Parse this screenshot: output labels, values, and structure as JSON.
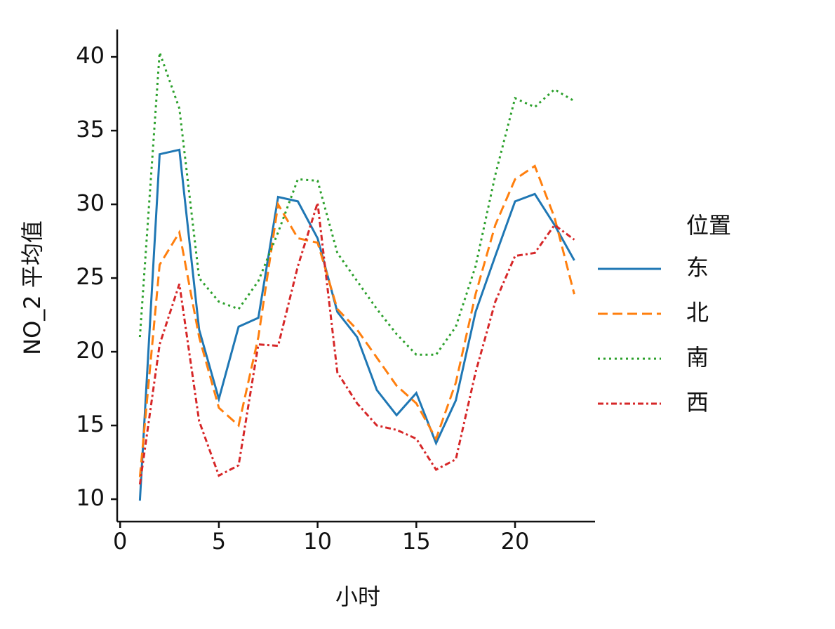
{
  "chart_data": {
    "type": "line",
    "xlabel": "小时",
    "ylabel": "NO_2 平均值",
    "legend_title": "位置",
    "legend": "right",
    "x": [
      1,
      2,
      3,
      4,
      5,
      6,
      7,
      8,
      9,
      10,
      11,
      12,
      13,
      14,
      15,
      16,
      17,
      18,
      19,
      20,
      21,
      22,
      23
    ],
    "xlim": [
      -0.15,
      24.05
    ],
    "xticks": [
      0,
      5,
      10,
      15,
      20
    ],
    "ylim": [
      8.48,
      41.86
    ],
    "yticks": [
      10,
      15,
      20,
      25,
      30,
      35,
      40
    ],
    "series": [
      {
        "name": "东",
        "color": "#1f77b4",
        "dash": "solid",
        "values": [
          9.9,
          33.4,
          33.7,
          21.5,
          16.8,
          21.7,
          22.3,
          30.5,
          30.2,
          27.7,
          22.7,
          21.0,
          17.4,
          15.7,
          17.2,
          13.8,
          16.7,
          22.7,
          26.5,
          30.2,
          30.7,
          28.6,
          26.2
        ]
      },
      {
        "name": "北",
        "color": "#ff7f0e",
        "dash": "dashed",
        "values": [
          11.5,
          25.9,
          28.1,
          21.0,
          16.2,
          15.0,
          21.0,
          30.0,
          27.7,
          27.4,
          22.9,
          21.5,
          19.6,
          17.7,
          16.5,
          14.1,
          17.9,
          23.9,
          28.6,
          31.7,
          32.6,
          29.1,
          23.9
        ]
      },
      {
        "name": "南",
        "color": "#2ca02c",
        "dash": "dotted",
        "values": [
          21.0,
          40.3,
          36.5,
          25.0,
          23.4,
          22.9,
          24.8,
          28.1,
          31.7,
          31.6,
          26.7,
          24.8,
          22.9,
          21.2,
          19.8,
          19.8,
          21.7,
          25.8,
          32.0,
          37.2,
          36.6,
          37.8,
          37.0
        ]
      },
      {
        "name": "西",
        "color": "#d62728",
        "dash": "dashdot",
        "values": [
          11.0,
          20.5,
          24.6,
          15.3,
          11.6,
          12.3,
          20.5,
          20.4,
          25.8,
          30.1,
          18.6,
          16.5,
          15.0,
          14.7,
          14.1,
          12.0,
          12.7,
          18.6,
          23.4,
          26.5,
          26.7,
          28.6,
          27.6
        ]
      }
    ]
  }
}
